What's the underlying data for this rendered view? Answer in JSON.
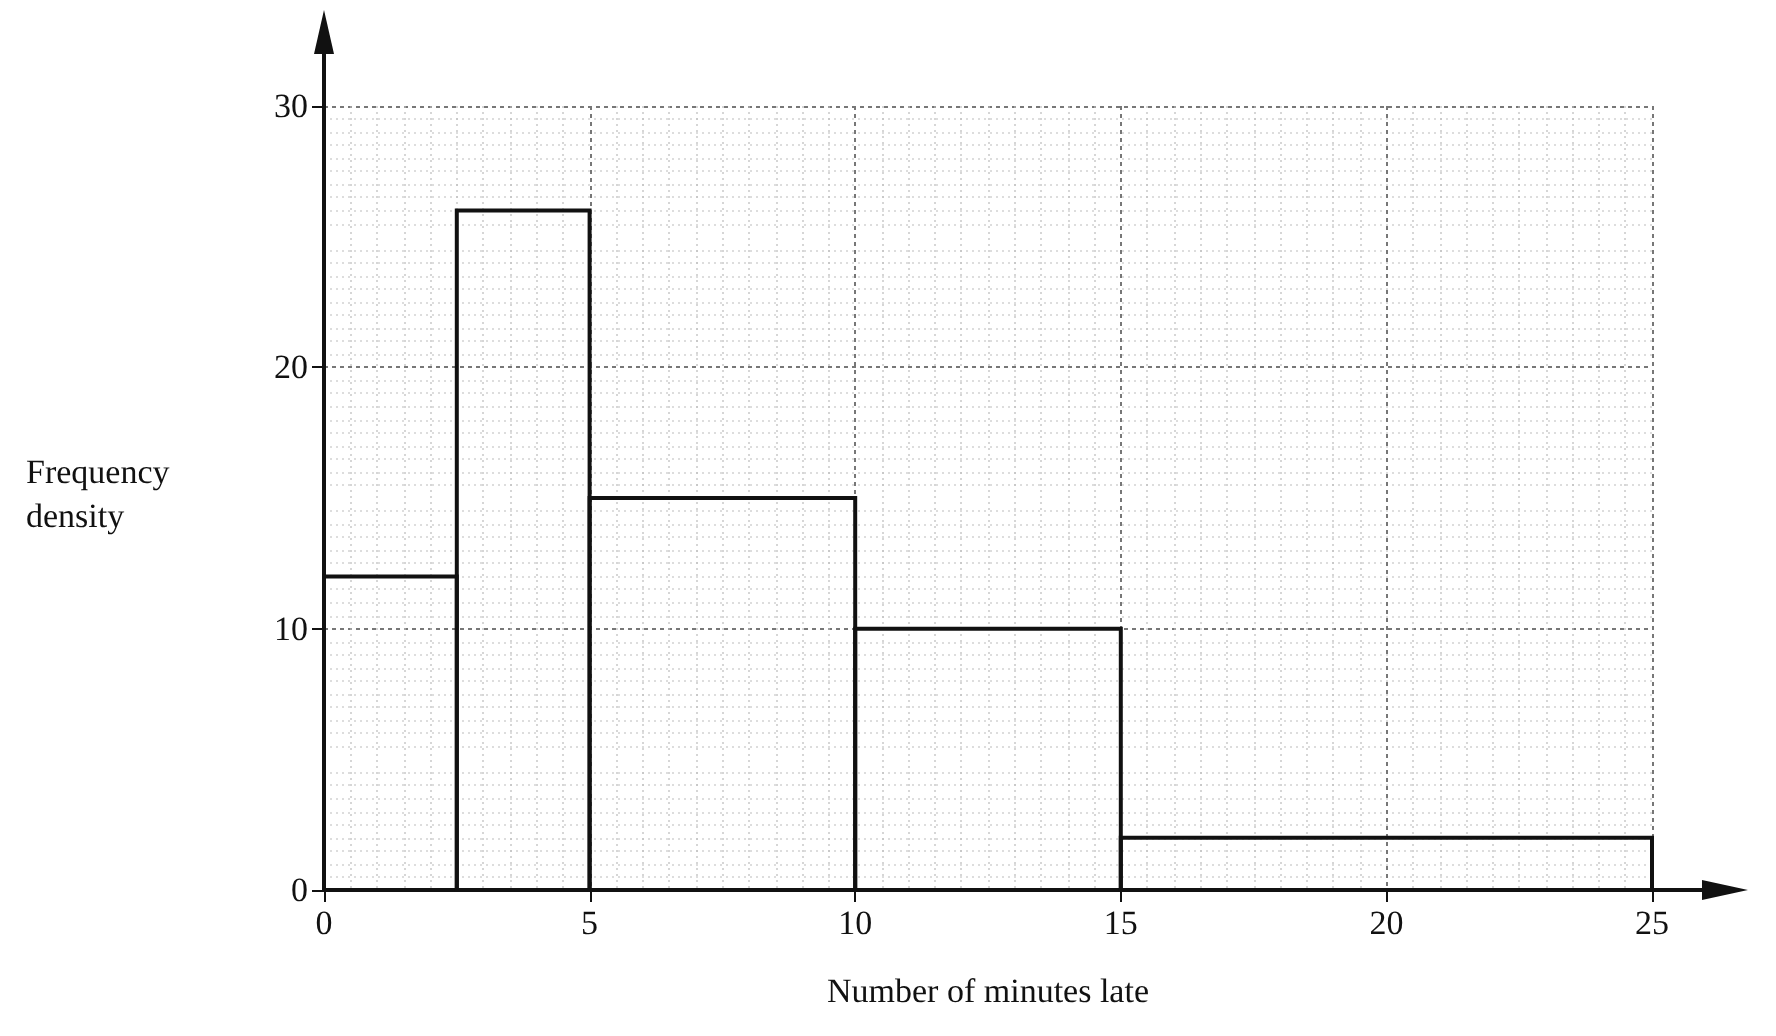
{
  "chart_data": {
    "type": "histogram",
    "xlabel": "Number of minutes late",
    "ylabel": "Frequency density",
    "bins": [
      0,
      2.5,
      5,
      10,
      15,
      25
    ],
    "values": [
      12,
      26,
      15,
      10,
      2
    ],
    "color": "#111111",
    "xlim": [
      0,
      25
    ],
    "xticks": [
      0,
      5,
      10,
      15,
      20,
      25
    ],
    "ylim": [
      0,
      30
    ],
    "yticks": [
      0,
      10,
      20,
      30
    ],
    "grid": true
  }
}
